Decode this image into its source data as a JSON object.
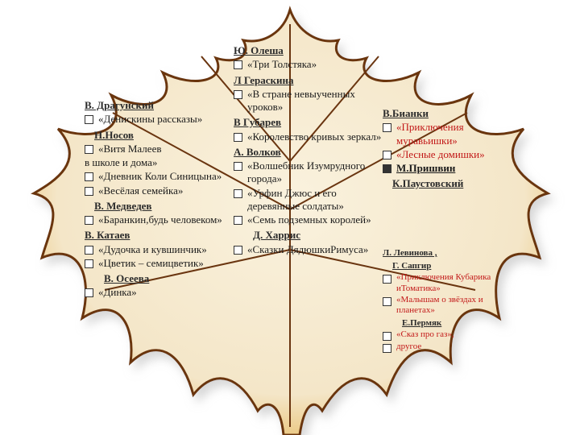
{
  "leaf": {
    "outline_color": "#5a3a1a",
    "fill_color": "#f4e8d0",
    "rim_colors": [
      "#e0b030",
      "#c85020",
      "#8a3a10"
    ],
    "shadow_color": "#c9c9c9"
  },
  "columns": {
    "left": [
      {
        "type": "author",
        "text": "В. Драгунский",
        "underline": true
      },
      {
        "type": "bullet",
        "text": "«Денискины рассказы»",
        "color": "blk"
      },
      {
        "type": "author",
        "text": "Н.Носов",
        "underline": true,
        "indent": 1
      },
      {
        "type": "bullet",
        "text": "«Витя Малеев",
        "color": "blk",
        "indent": 1
      },
      {
        "type": "plain",
        "text": "в школе и дома»",
        "color": "blk"
      },
      {
        "type": "bullet",
        "text": "«Дневник Коли Синицына»",
        "color": "blk",
        "indent": 1
      },
      {
        "type": "bullet",
        "text": "«Весёлая семейка»",
        "color": "blk",
        "indent": 1
      },
      {
        "type": "author",
        "text": "В. Медведев",
        "underline": true,
        "indent": 1
      },
      {
        "type": "bullet",
        "text": "«Баранкин,будь человеком»",
        "color": "blk",
        "indent": 1
      },
      {
        "type": "author",
        "text": "В. Катаев",
        "underline": true
      },
      {
        "type": "bullet",
        "text": "«Дудочка и кувшинчик»",
        "color": "blk",
        "indent": 1
      },
      {
        "type": "bullet",
        "text": "«Цветик – семицветик»",
        "color": "blk",
        "indent": 1
      },
      {
        "type": "author",
        "text": "В. Осеева",
        "underline": true,
        "indent": 2
      },
      {
        "type": "bullet",
        "text": "«Динка»",
        "color": "blk",
        "indent": 1
      }
    ],
    "mid": [
      {
        "type": "author",
        "text": "Ю. Олеша",
        "underline": true
      },
      {
        "type": "bullet",
        "text": "«Три Толстяка»",
        "color": "blk",
        "indent": 1
      },
      {
        "type": "author",
        "text": "Л Гераскина",
        "underline": true
      },
      {
        "type": "bullet",
        "text": "«В стране невыученных уроков»",
        "color": "blk",
        "indent": 1
      },
      {
        "type": "author",
        "text": "В Губарев",
        "underline": true
      },
      {
        "type": "bullet",
        "text": "«Королевство кривых зеркал»",
        "color": "blk",
        "indent": 1
      },
      {
        "type": "author",
        "text": "А. Волков",
        "underline": true
      },
      {
        "type": "bullet",
        "text": "«Волшебник Изумрудного города»",
        "color": "blk"
      },
      {
        "type": "bullet",
        "text": "«Урфин Джюс и его деревянные солдаты»",
        "color": "blk"
      },
      {
        "type": "bullet",
        "text": "«Семь подземных королей»",
        "color": "blk"
      },
      {
        "type": "author",
        "text": "Д. Харрис",
        "underline": true,
        "indent": 2
      },
      {
        "type": "bullet",
        "text": "«Сказки ДядюшкиРимуса»",
        "color": "blk"
      }
    ],
    "right": [
      {
        "type": "author",
        "text": "В.Бианки",
        "underline": true
      },
      {
        "type": "bullet",
        "text": "«Приключения муравьишки»",
        "color": "red"
      },
      {
        "type": "bullet",
        "text": "«Лесные домишки»",
        "color": "red"
      },
      {
        "type": "bullet-filled",
        "text": "М.Пришвин",
        "color": "blk",
        "bold": true,
        "underline": true
      },
      {
        "type": "author",
        "text": "К.Паустовский",
        "underline": true,
        "indent": 1
      }
    ],
    "right2": [
      {
        "type": "author",
        "text": "Л. Левинова ,",
        "underline": true
      },
      {
        "type": "author",
        "text": "Г. Сапгир",
        "underline": true,
        "indent": 1
      },
      {
        "type": "bullet",
        "text": "«Приключения Кубарика иТоматика»",
        "color": "red"
      },
      {
        "type": "bullet",
        "text": "«Малышам о звёздах и планетах»",
        "color": "red"
      },
      {
        "type": "author",
        "text": "Е.Пермяк",
        "underline": true,
        "indent": 2
      },
      {
        "type": "bullet",
        "text": "«Сказ про газ»,",
        "color": "red"
      },
      {
        "type": "bullet",
        "text": "другое",
        "color": "red"
      }
    ]
  }
}
